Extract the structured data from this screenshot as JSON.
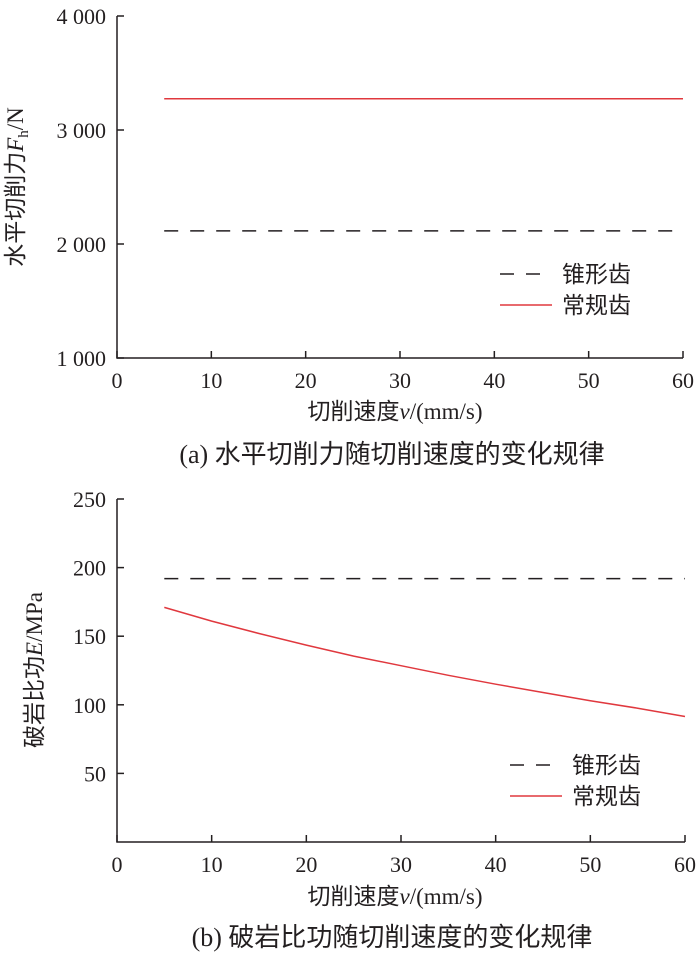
{
  "chart_data": [
    {
      "type": "line",
      "caption": "(a)  水平切削力随切削速度的变化规律",
      "xlabel_prefix": "切削速度",
      "xlabel_var": "v",
      "xlabel_suffix": "/(mm/s)",
      "ylabel_prefix": "水平切削力",
      "ylabel_var": "F",
      "ylabel_sub": "h",
      "ylabel_suffix": "/N",
      "xlim": [
        0,
        60
      ],
      "ylim": [
        1000,
        4000
      ],
      "xticks": [
        0,
        10,
        20,
        30,
        40,
        50,
        60
      ],
      "xtick_labels": [
        "0",
        "10",
        "20",
        "30",
        "40",
        "50",
        "60"
      ],
      "yticks": [
        1000,
        2000,
        3000,
        4000
      ],
      "ytick_labels": [
        "1 000",
        "2 000",
        "3 000",
        "4 000"
      ],
      "grid": false,
      "legend_position": "center-right",
      "series": [
        {
          "name": "锥形齿",
          "style": "dashed",
          "color": "#231f20",
          "x": [
            5,
            60
          ],
          "y": [
            2115,
            2115
          ]
        },
        {
          "name": "常规齿",
          "style": "solid",
          "color": "#e0383e",
          "x": [
            5,
            60
          ],
          "y": [
            3275,
            3275
          ]
        }
      ]
    },
    {
      "type": "line",
      "caption": "(b)  破岩比功随切削速度的变化规律",
      "xlabel_prefix": "切削速度",
      "xlabel_var": "v",
      "xlabel_suffix": "/(mm/s)",
      "ylabel_prefix": "破岩比功",
      "ylabel_var": "E",
      "ylabel_sub": "",
      "ylabel_suffix": "/MPa",
      "xlim": [
        0,
        60
      ],
      "ylim": [
        0,
        250
      ],
      "xticks": [
        0,
        10,
        20,
        30,
        40,
        50,
        60
      ],
      "xtick_labels": [
        "0",
        "10",
        "20",
        "30",
        "40",
        "50",
        "60"
      ],
      "yticks": [
        50,
        100,
        150,
        200,
        250
      ],
      "ytick_labels": [
        "50",
        "100",
        "150",
        "200",
        "250"
      ],
      "grid": false,
      "legend_position": "bottom-right",
      "series": [
        {
          "name": "锥形齿",
          "style": "dashed",
          "color": "#231f20",
          "x": [
            5,
            60
          ],
          "y": [
            192,
            192
          ]
        },
        {
          "name": "常规齿",
          "style": "solid",
          "color": "#e0383e",
          "x": [
            5,
            10,
            15,
            20,
            25,
            30,
            35,
            40,
            45,
            50,
            55,
            60
          ],
          "y": [
            171,
            161,
            152,
            143.5,
            135.5,
            128.5,
            121.5,
            115,
            109,
            103,
            97.5,
            91.5
          ]
        }
      ]
    }
  ]
}
